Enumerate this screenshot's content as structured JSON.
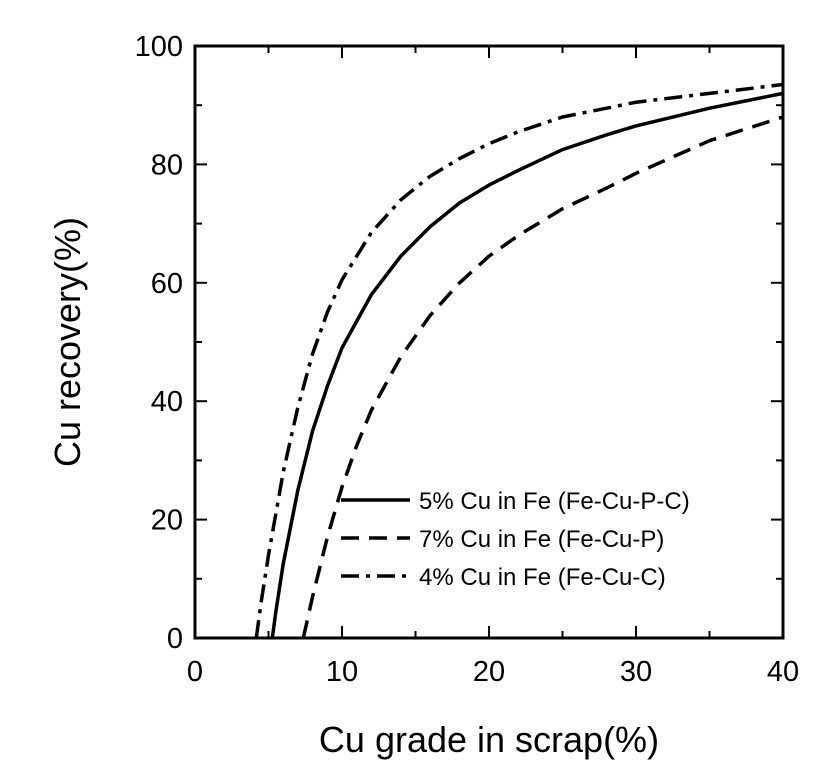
{
  "chart_data": {
    "type": "line",
    "xlabel": "Cu grade in scrap(%)",
    "ylabel": "Cu recovery(%)",
    "xlim": [
      0,
      40
    ],
    "ylim": [
      0,
      100
    ],
    "xticks": [
      "0",
      "10",
      "20",
      "30",
      "40"
    ],
    "yticks": [
      "0",
      "20",
      "40",
      "60",
      "80",
      "100"
    ],
    "grid": false,
    "legend_position": "lower-right",
    "series": [
      {
        "name": "5% Cu in Fe (Fe-Cu-P-C)",
        "style": "solid",
        "x": [
          5.26,
          5.5,
          6,
          7,
          8,
          9,
          10,
          12,
          14,
          16,
          18,
          20,
          22,
          25,
          28,
          30,
          35,
          40
        ],
        "y": [
          0,
          4.5,
          12.5,
          25,
          35,
          42.5,
          49,
          58,
          64.5,
          69.5,
          73.5,
          76.5,
          79,
          82.5,
          85,
          86.5,
          89.5,
          92
        ]
      },
      {
        "name": "7% Cu in Fe (Fe-Cu-P)",
        "style": "dashed",
        "x": [
          7.37,
          8,
          9,
          10,
          11,
          12,
          14,
          16,
          18,
          20,
          22,
          25,
          28,
          30,
          35,
          40
        ],
        "y": [
          0,
          7,
          17,
          25.5,
          32.5,
          38.5,
          47.5,
          54.5,
          60,
          64.5,
          68,
          72.5,
          76,
          78.5,
          84,
          88
        ]
      },
      {
        "name": "4% Cu in Fe (Fe-Cu-C)",
        "style": "dashdot",
        "x": [
          4.17,
          4.5,
          5,
          6,
          7,
          8,
          9,
          10,
          12,
          14,
          16,
          18,
          20,
          22,
          25,
          28,
          30,
          35,
          40
        ],
        "y": [
          0,
          6,
          14,
          28,
          39,
          48,
          55,
          60.5,
          68.5,
          74,
          78,
          81,
          83.5,
          85.5,
          88,
          89.5,
          90.5,
          92,
          93.5
        ]
      }
    ]
  }
}
